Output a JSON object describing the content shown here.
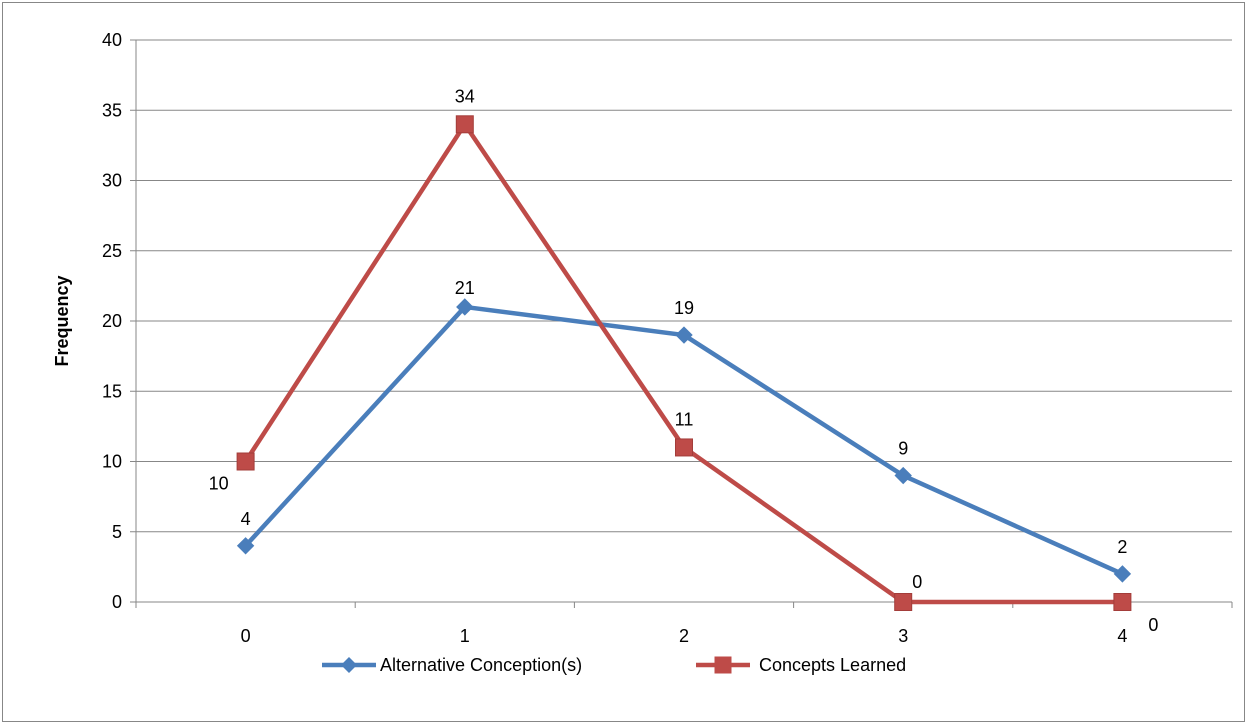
{
  "chart_data": {
    "type": "line",
    "title": "",
    "xlabel": "",
    "ylabel": "Frequency",
    "categories": [
      "0",
      "1",
      "2",
      "3",
      "4"
    ],
    "ylim": [
      0,
      40
    ],
    "yticks": [
      "0",
      "5",
      "10",
      "15",
      "20",
      "25",
      "30",
      "35",
      "40"
    ],
    "grid": true,
    "legend_position": "bottom",
    "series": [
      {
        "name": "Alternative Conception(s)",
        "values": [
          4,
          21,
          19,
          9,
          2
        ],
        "color": "#4a7ebb",
        "marker": "diamond",
        "labels": [
          "4",
          "21",
          "19",
          "9",
          "2"
        ]
      },
      {
        "name": "Concepts Learned",
        "values": [
          10,
          34,
          11,
          0,
          0
        ],
        "color": "#be4b48",
        "marker": "square",
        "labels": [
          "10",
          "34",
          "11",
          "0",
          "0"
        ]
      }
    ]
  }
}
